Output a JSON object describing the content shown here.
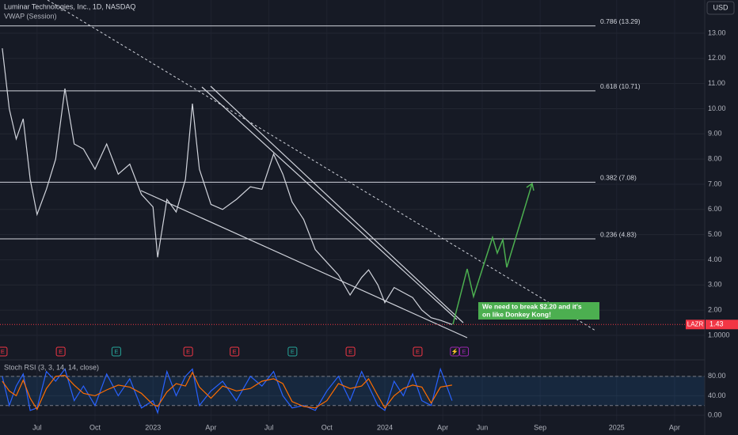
{
  "chart_data": [
    {
      "type": "line",
      "title": "Luminar Technologies, Inc., 1D, NASDAQ",
      "subtitle": "VWAP (Session)",
      "currency": "USD",
      "x": [
        2022.35,
        2022.38,
        2022.41,
        2022.44,
        2022.47,
        2022.5,
        2022.54,
        2022.58,
        2022.62,
        2022.66,
        2022.7,
        2022.75,
        2022.8,
        2022.85,
        2022.9,
        2022.95,
        2023.0,
        2023.02,
        2023.06,
        2023.1,
        2023.14,
        2023.17,
        2023.2,
        2023.25,
        2023.3,
        2023.36,
        2023.42,
        2023.47,
        2023.52,
        2023.56,
        2023.6,
        2023.65,
        2023.7,
        2023.75,
        2023.8,
        2023.85,
        2023.9,
        2023.93,
        2023.97,
        2024.0,
        2024.04,
        2024.08,
        2024.12,
        2024.16,
        2024.2,
        2024.24,
        2024.29
      ],
      "series": [
        {
          "color": "#d1d4dc",
          "values": [
            12.4,
            10.0,
            8.8,
            9.6,
            7.2,
            5.8,
            6.8,
            8.0,
            10.8,
            8.6,
            8.4,
            7.6,
            8.6,
            7.4,
            7.8,
            6.6,
            6.1,
            4.1,
            6.4,
            5.9,
            7.2,
            10.2,
            7.6,
            6.2,
            6.0,
            6.4,
            6.9,
            6.8,
            8.2,
            7.4,
            6.3,
            5.6,
            4.4,
            3.9,
            3.4,
            2.6,
            3.3,
            3.6,
            3.0,
            2.3,
            2.9,
            2.7,
            2.5,
            2.0,
            1.7,
            1.6,
            1.43
          ]
        }
      ],
      "xlim": [
        2022.34,
        2025.38
      ],
      "xticks": [
        {
          "value": 2022.5,
          "label": "Jul"
        },
        {
          "value": 2022.75,
          "label": "Oct"
        },
        2023,
        {
          "value": 2023.25,
          "label": "Apr"
        },
        {
          "value": 2023.5,
          "label": "Jul"
        },
        {
          "value": 2023.75,
          "label": "Oct"
        },
        2024,
        {
          "value": 2024.25,
          "label": "Apr"
        },
        {
          "value": 2024.42,
          "label": "Jun"
        },
        {
          "value": 2024.67,
          "label": "Sep"
        },
        2025,
        {
          "value": 2025.25,
          "label": "Apr"
        }
      ],
      "ylim": [
        0,
        14.3
      ],
      "yticks": [
        {
          "value": 1,
          "label": "1.0000"
        },
        {
          "value": 2,
          "label": "2.00"
        },
        {
          "value": 3,
          "label": "3.00"
        },
        {
          "value": 4,
          "label": "4.00"
        },
        {
          "value": 5,
          "label": "5.00"
        },
        {
          "value": 6,
          "label": "6.00"
        },
        {
          "value": 7,
          "label": "7.00"
        },
        {
          "value": 8,
          "label": "8.00"
        },
        {
          "value": 9,
          "label": "9.00"
        },
        {
          "value": 10,
          "label": "10.00"
        },
        {
          "value": 11,
          "label": "11.00"
        },
        {
          "value": 12,
          "label": "12.00"
        },
        {
          "value": 13,
          "label": "13.00"
        }
      ],
      "grid": true,
      "levels": [
        {
          "value": 13.29,
          "label": "0.786 (13.29)"
        },
        {
          "value": 10.71,
          "label": "0.618 (10.71)"
        },
        {
          "value": 7.08,
          "label": "0.382 (7.08)"
        },
        {
          "value": 4.83,
          "label": "0.236 (4.83)"
        }
      ],
      "last_price": {
        "symbol": "LAZR",
        "value": 1.43
      },
      "events": [
        {
          "x": 2022.35,
          "label": "E",
          "color": "#f23645"
        },
        {
          "x": 2022.6,
          "label": "E",
          "color": "#f23645"
        },
        {
          "x": 2022.84,
          "label": "E",
          "color": "#26a69a"
        },
        {
          "x": 2023.15,
          "label": "E",
          "color": "#f23645"
        },
        {
          "x": 2023.35,
          "label": "E",
          "color": "#f23645"
        },
        {
          "x": 2023.6,
          "label": "E",
          "color": "#26a69a"
        },
        {
          "x": 2023.85,
          "label": "E",
          "color": "#f23645"
        },
        {
          "x": 2024.14,
          "label": "E",
          "color": "#f23645"
        },
        {
          "x": 2024.3,
          "label": "⚡",
          "color": "#9c27b0"
        },
        {
          "x": 2024.34,
          "label": "E",
          "color": "#9c27b0"
        }
      ],
      "annotation": {
        "lines": [
          "We need to break $2.20 and it's",
          "on like Donkey Kong!"
        ]
      }
    },
    {
      "type": "line",
      "title": "Stoch RSI (3, 3, 14, 14, close)",
      "x": [
        2022.35,
        2022.38,
        2022.41,
        2022.44,
        2022.47,
        2022.5,
        2022.54,
        2022.58,
        2022.62,
        2022.66,
        2022.7,
        2022.75,
        2022.8,
        2022.85,
        2022.9,
        2022.95,
        2023.0,
        2023.02,
        2023.06,
        2023.1,
        2023.14,
        2023.17,
        2023.2,
        2023.25,
        2023.3,
        2023.36,
        2023.42,
        2023.47,
        2023.52,
        2023.56,
        2023.6,
        2023.65,
        2023.7,
        2023.75,
        2023.8,
        2023.85,
        2023.9,
        2023.93,
        2023.97,
        2024.0,
        2024.04,
        2024.08,
        2024.12,
        2024.16,
        2024.2,
        2024.24,
        2024.29
      ],
      "series": [
        {
          "color": "#2962ff",
          "values": [
            80,
            20,
            60,
            85,
            10,
            15,
            90,
            70,
            95,
            30,
            60,
            20,
            85,
            40,
            75,
            15,
            30,
            5,
            90,
            40,
            80,
            95,
            20,
            50,
            70,
            30,
            80,
            60,
            90,
            40,
            15,
            20,
            10,
            50,
            80,
            30,
            90,
            60,
            20,
            10,
            70,
            40,
            85,
            30,
            20,
            95,
            30
          ]
        },
        {
          "color": "#ff6d00",
          "values": [
            70,
            50,
            40,
            72,
            35,
            12,
            55,
            80,
            82,
            62,
            45,
            40,
            52,
            62,
            58,
            45,
            22,
            18,
            48,
            65,
            60,
            88,
            58,
            35,
            60,
            50,
            55,
            70,
            75,
            65,
            28,
            18,
            15,
            30,
            65,
            55,
            60,
            75,
            40,
            15,
            40,
            55,
            62,
            58,
            25,
            58,
            62
          ]
        }
      ],
      "xlim": [
        2022.34,
        2025.38
      ],
      "ylim": [
        -13,
        109
      ],
      "yticks": [
        {
          "value": 0,
          "label": "0.00"
        },
        {
          "value": 40,
          "label": "40.00"
        },
        {
          "value": 80,
          "label": "80.00"
        }
      ],
      "band": [
        20,
        80
      ]
    }
  ]
}
